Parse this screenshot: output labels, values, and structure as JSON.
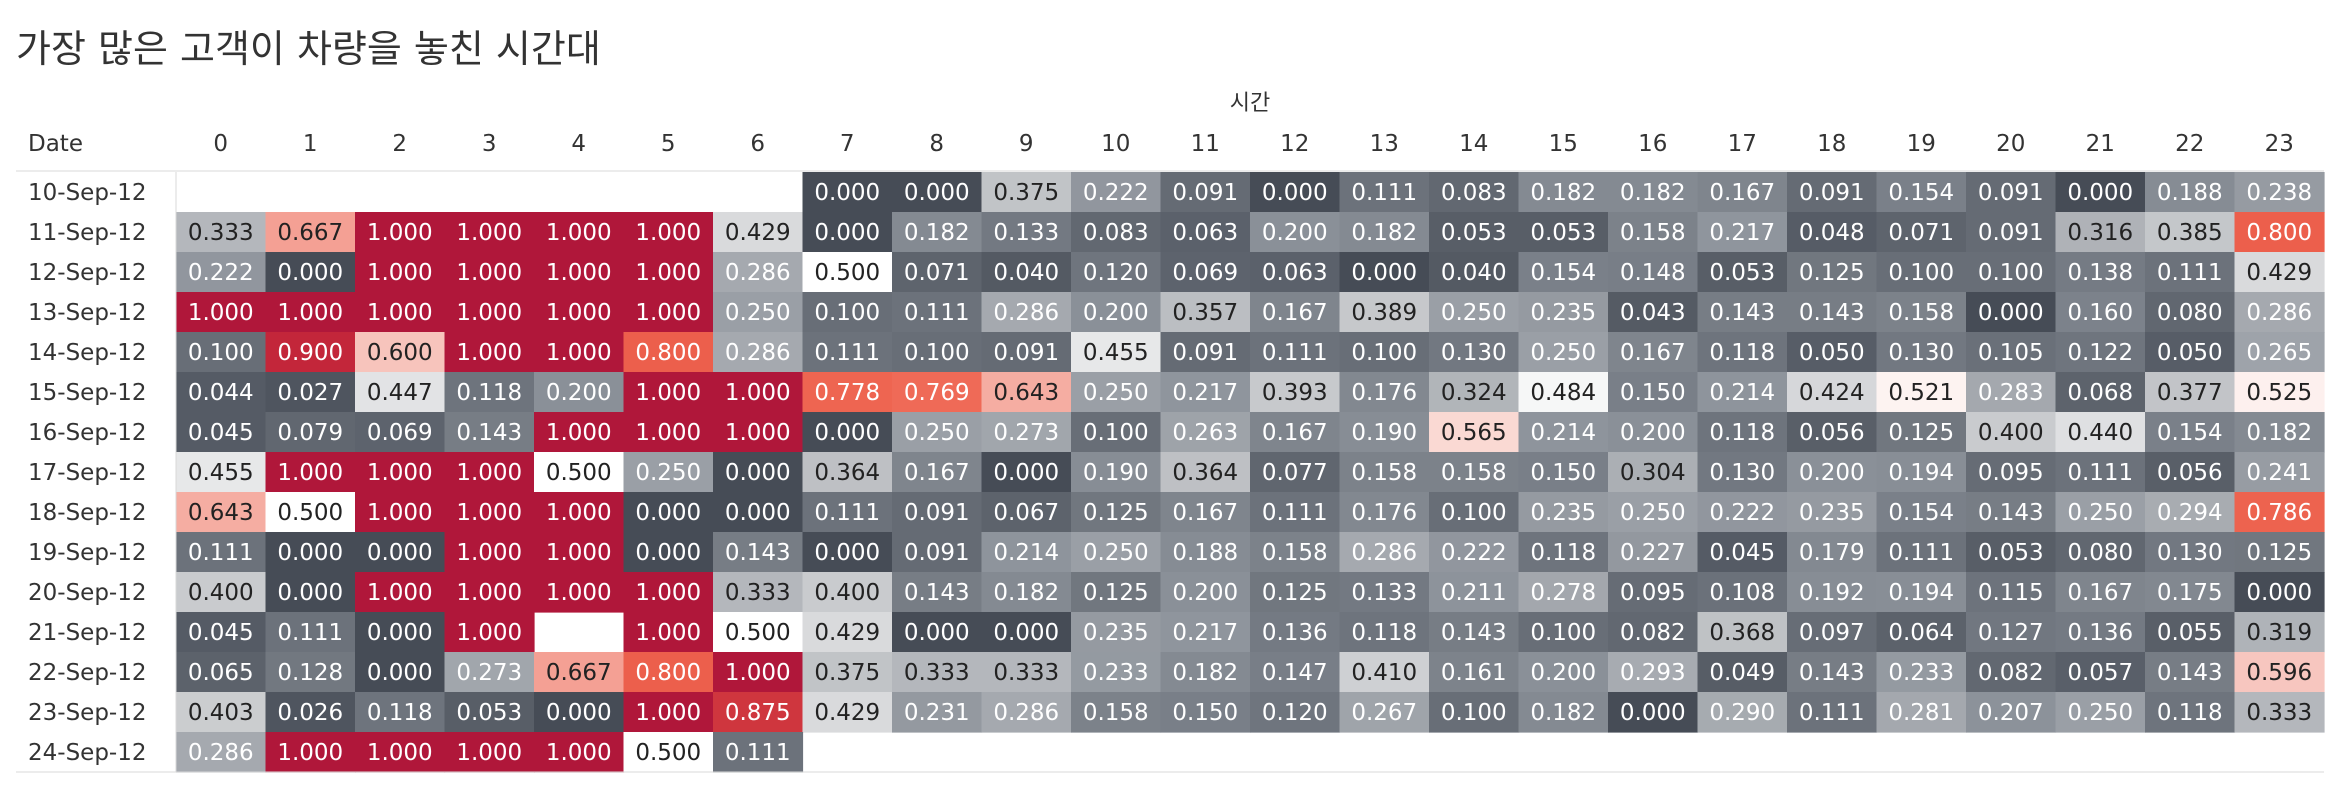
{
  "chart_data": {
    "type": "heatmap",
    "title": "가장 많은 고객이 차량을 놓친 시간대",
    "column_header": "시간",
    "row_header": "Date",
    "x": [
      "0",
      "1",
      "2",
      "3",
      "4",
      "5",
      "6",
      "7",
      "8",
      "9",
      "10",
      "11",
      "12",
      "13",
      "14",
      "15",
      "16",
      "17",
      "18",
      "19",
      "20",
      "21",
      "22",
      "23"
    ],
    "y": [
      "10-Sep-12",
      "11-Sep-12",
      "12-Sep-12",
      "13-Sep-12",
      "14-Sep-12",
      "15-Sep-12",
      "16-Sep-12",
      "17-Sep-12",
      "18-Sep-12",
      "19-Sep-12",
      "20-Sep-12",
      "21-Sep-12",
      "22-Sep-12",
      "23-Sep-12",
      "24-Sep-12"
    ],
    "values": [
      [
        null,
        null,
        null,
        null,
        null,
        null,
        null,
        "0.000",
        "0.000",
        "0.375",
        "0.222",
        "0.091",
        "0.000",
        "0.111",
        "0.083",
        "0.182",
        "0.182",
        "0.167",
        "0.091",
        "0.154",
        "0.091",
        "0.000",
        "0.188",
        "0.238"
      ],
      [
        "0.333",
        "0.667",
        "1.000",
        "1.000",
        "1.000",
        "1.000",
        "0.429",
        "0.000",
        "0.182",
        "0.133",
        "0.083",
        "0.063",
        "0.200",
        "0.182",
        "0.053",
        "0.053",
        "0.158",
        "0.217",
        "0.048",
        "0.071",
        "0.091",
        "0.316",
        "0.385",
        "0.800"
      ],
      [
        "0.222",
        "0.000",
        "1.000",
        "1.000",
        "1.000",
        "1.000",
        "0.286",
        "0.500",
        "0.071",
        "0.040",
        "0.120",
        "0.069",
        "0.063",
        "0.000",
        "0.040",
        "0.154",
        "0.148",
        "0.053",
        "0.125",
        "0.100",
        "0.100",
        "0.138",
        "0.111",
        "0.429"
      ],
      [
        "1.000",
        "1.000",
        "1.000",
        "1.000",
        "1.000",
        "1.000",
        "0.250",
        "0.100",
        "0.111",
        "0.286",
        "0.200",
        "0.357",
        "0.167",
        "0.389",
        "0.250",
        "0.235",
        "0.043",
        "0.143",
        "0.143",
        "0.158",
        "0.000",
        "0.160",
        "0.080",
        "0.286"
      ],
      [
        "0.100",
        "0.900",
        "0.600",
        "1.000",
        "1.000",
        "0.800",
        "0.286",
        "0.111",
        "0.100",
        "0.091",
        "0.455",
        "0.091",
        "0.111",
        "0.100",
        "0.130",
        "0.250",
        "0.167",
        "0.118",
        "0.050",
        "0.130",
        "0.105",
        "0.122",
        "0.050",
        "0.265"
      ],
      [
        "0.044",
        "0.027",
        "0.447",
        "0.118",
        "0.200",
        "1.000",
        "1.000",
        "0.778",
        "0.769",
        "0.643",
        "0.250",
        "0.217",
        "0.393",
        "0.176",
        "0.324",
        "0.484",
        "0.150",
        "0.214",
        "0.424",
        "0.521",
        "0.283",
        "0.068",
        "0.377",
        "0.525"
      ],
      [
        "0.045",
        "0.079",
        "0.069",
        "0.143",
        "1.000",
        "1.000",
        "1.000",
        "0.000",
        "0.250",
        "0.273",
        "0.100",
        "0.263",
        "0.167",
        "0.190",
        "0.565",
        "0.214",
        "0.200",
        "0.118",
        "0.056",
        "0.125",
        "0.400",
        "0.440",
        "0.154",
        "0.182"
      ],
      [
        "0.455",
        "1.000",
        "1.000",
        "1.000",
        "0.500",
        "0.250",
        "0.000",
        "0.364",
        "0.167",
        "0.000",
        "0.190",
        "0.364",
        "0.077",
        "0.158",
        "0.158",
        "0.150",
        "0.304",
        "0.130",
        "0.200",
        "0.194",
        "0.095",
        "0.111",
        "0.056",
        "0.241"
      ],
      [
        "0.643",
        "0.500",
        "1.000",
        "1.000",
        "1.000",
        "0.000",
        "0.000",
        "0.111",
        "0.091",
        "0.067",
        "0.125",
        "0.167",
        "0.111",
        "0.176",
        "0.100",
        "0.235",
        "0.250",
        "0.222",
        "0.235",
        "0.154",
        "0.143",
        "0.250",
        "0.294",
        "0.786"
      ],
      [
        "0.111",
        "0.000",
        "0.000",
        "1.000",
        "1.000",
        "0.000",
        "0.143",
        "0.000",
        "0.091",
        "0.214",
        "0.250",
        "0.188",
        "0.158",
        "0.286",
        "0.222",
        "0.118",
        "0.227",
        "0.045",
        "0.179",
        "0.111",
        "0.053",
        "0.080",
        "0.130",
        "0.125"
      ],
      [
        "0.400",
        "0.000",
        "1.000",
        "1.000",
        "1.000",
        "1.000",
        "0.333",
        "0.400",
        "0.143",
        "0.182",
        "0.125",
        "0.200",
        "0.125",
        "0.133",
        "0.211",
        "0.278",
        "0.095",
        "0.108",
        "0.192",
        "0.194",
        "0.115",
        "0.167",
        "0.175",
        "0.000"
      ],
      [
        "0.045",
        "0.111",
        "0.000",
        "1.000",
        null,
        "1.000",
        "0.500",
        "0.429",
        "0.000",
        "0.000",
        "0.235",
        "0.217",
        "0.136",
        "0.118",
        "0.143",
        "0.100",
        "0.082",
        "0.368",
        "0.097",
        "0.064",
        "0.127",
        "0.136",
        "0.055",
        "0.319"
      ],
      [
        "0.065",
        "0.128",
        "0.000",
        "0.273",
        "0.667",
        "0.800",
        "1.000",
        "0.375",
        "0.333",
        "0.333",
        "0.233",
        "0.182",
        "0.147",
        "0.410",
        "0.161",
        "0.200",
        "0.293",
        "0.049",
        "0.143",
        "0.233",
        "0.082",
        "0.057",
        "0.143",
        "0.596"
      ],
      [
        "0.403",
        "0.026",
        "0.118",
        "0.053",
        "0.000",
        "1.000",
        "0.875",
        "0.429",
        "0.231",
        "0.286",
        "0.158",
        "0.150",
        "0.120",
        "0.267",
        "0.100",
        "0.182",
        "0.000",
        "0.290",
        "0.111",
        "0.281",
        "0.207",
        "0.250",
        "0.118",
        "0.333"
      ],
      [
        "0.286",
        "1.000",
        "1.000",
        "1.000",
        "1.000",
        "0.500",
        "0.111",
        null,
        null,
        null,
        null,
        null,
        null,
        null,
        null,
        null,
        null,
        null,
        null,
        null,
        null,
        null,
        null,
        null
      ]
    ],
    "color_scale": {
      "type": "diverging",
      "stops": [
        {
          "value": 0.0,
          "color": "#464c56"
        },
        {
          "value": 0.2,
          "color": "#8a9098"
        },
        {
          "value": 0.4,
          "color": "#c9cbce"
        },
        {
          "value": 0.5,
          "color": "#ffffff"
        },
        {
          "value": 0.6,
          "color": "#f7c4bc"
        },
        {
          "value": 0.78,
          "color": "#ee6450"
        },
        {
          "value": 0.82,
          "color": "#ea5a48"
        },
        {
          "value": 0.9,
          "color": "#c3263a"
        },
        {
          "value": 1.0,
          "color": "#b0173a"
        }
      ],
      "light_text": "#ffffff",
      "dark_text": "#222222"
    }
  }
}
